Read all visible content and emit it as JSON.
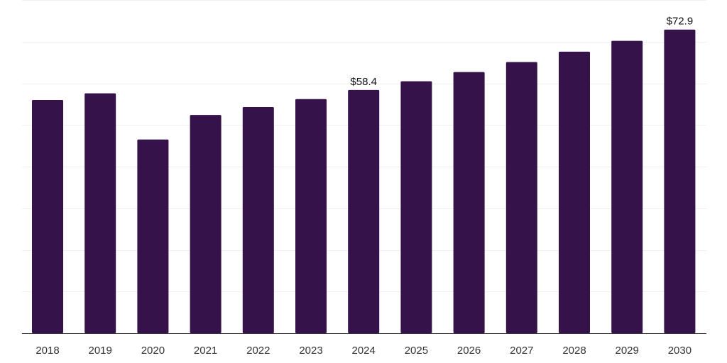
{
  "chart_data": {
    "type": "bar",
    "title": "",
    "xlabel": "",
    "ylabel": "",
    "categories": [
      "2018",
      "2019",
      "2020",
      "2021",
      "2022",
      "2023",
      "2024",
      "2025",
      "2026",
      "2027",
      "2028",
      "2029",
      "2030"
    ],
    "values": [
      56.0,
      57.6,
      46.5,
      52.4,
      54.3,
      56.2,
      58.4,
      60.5,
      62.7,
      65.1,
      67.6,
      70.2,
      72.9
    ],
    "data_labels": [
      {
        "index": 6,
        "text": "$58.4"
      },
      {
        "index": 12,
        "text": "$72.9"
      }
    ],
    "ylim": [
      0,
      80
    ],
    "grid_step": 10,
    "grid": true,
    "legend": "none",
    "bar_color": "#36124a"
  }
}
